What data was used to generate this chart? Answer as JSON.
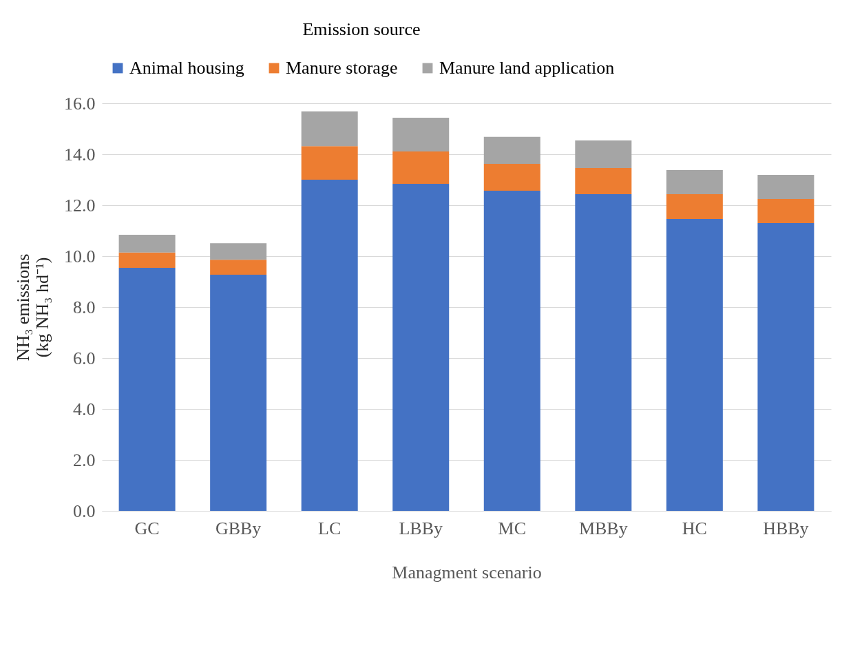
{
  "chart_data": {
    "type": "bar",
    "stacked": true,
    "categories": [
      "GC",
      "GBBy",
      "LC",
      "LBBy",
      "MC",
      "MBBy",
      "HC",
      "HBBy"
    ],
    "series": [
      {
        "name": "Animal housing",
        "color": "#4472c4",
        "values": [
          9.54,
          9.27,
          13.0,
          12.84,
          12.57,
          12.43,
          11.46,
          11.3
        ]
      },
      {
        "name": "Manure storage",
        "color": "#ed7d31",
        "values": [
          0.6,
          0.59,
          1.32,
          1.27,
          1.05,
          1.03,
          0.97,
          0.94
        ]
      },
      {
        "name": "Manure land application",
        "color": "#a5a5a5",
        "values": [
          0.7,
          0.65,
          1.36,
          1.32,
          1.06,
          1.08,
          0.95,
          0.95
        ]
      }
    ],
    "xlabel": "Managment scenario",
    "ylabel": "NH₃ emissions\n(kg NH₃ hd⁻¹)",
    "legend_title": "Emission source",
    "legend": "top",
    "grid": "y",
    "ylim": [
      0,
      16
    ],
    "yticks": [
      {
        "value": 0,
        "label": "0.0"
      },
      {
        "value": 2,
        "label": "2.0"
      },
      {
        "value": 4,
        "label": "4.0"
      },
      {
        "value": 6,
        "label": "6.0"
      },
      {
        "value": 8,
        "label": "8.0"
      },
      {
        "value": 10,
        "label": "10.0"
      },
      {
        "value": 12,
        "label": "12.0"
      },
      {
        "value": 14,
        "label": "14.0"
      },
      {
        "value": 16,
        "label": "16.0"
      }
    ]
  }
}
